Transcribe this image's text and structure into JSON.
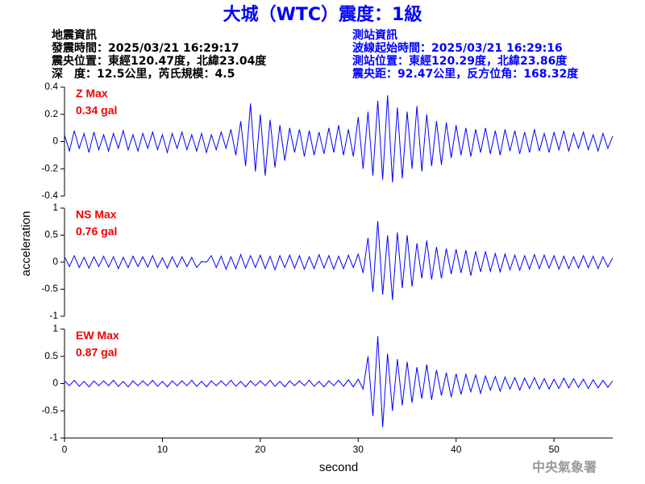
{
  "header": {
    "title": "大城（WTC）震度：1級",
    "left": [
      "地震資訊",
      "發震時間：2025/03/21 16:29:17",
      "震央位置：東經120.47度，北緯23.04度",
      "深　度：12.5公里，芮氏規模：4.5"
    ],
    "right": [
      "測站資訊",
      "波線起始時間：2025/03/21 16:29:16",
      "測站位置：東經120.29度，北緯23.86度",
      "震央距：92.47公里，反方位角：168.32度"
    ],
    "ylabel": "acceleration",
    "footer": "中央氣象署"
  },
  "chart_data": [
    {
      "type": "line",
      "annotation": [
        "Z Max",
        "0.34 gal"
      ],
      "color": "#0000ff",
      "xlim": [
        0,
        56
      ],
      "ylim": [
        -0.4,
        0.4
      ],
      "yticks": [
        0.4,
        0.2,
        0,
        -0.2,
        -0.4
      ],
      "x": [
        0,
        0.5,
        1,
        1.5,
        2,
        2.5,
        3,
        3.5,
        4,
        4.5,
        5,
        5.5,
        6,
        6.5,
        7,
        7.5,
        8,
        8.5,
        9,
        9.5,
        10,
        10.5,
        11,
        11.5,
        12,
        12.5,
        13,
        13.5,
        14,
        14.5,
        15,
        15.5,
        16,
        16.5,
        17,
        17.5,
        18,
        18.5,
        19,
        19.5,
        20,
        20.5,
        21,
        21.5,
        22,
        22.5,
        23,
        23.5,
        24,
        24.5,
        25,
        25.5,
        26,
        26.5,
        27,
        27.5,
        28,
        28.5,
        29,
        29.5,
        30,
        30.5,
        31,
        31.5,
        32,
        32.5,
        33,
        33.5,
        34,
        34.5,
        35,
        35.5,
        36,
        36.5,
        37,
        37.5,
        38,
        38.5,
        39,
        39.5,
        40,
        40.5,
        41,
        41.5,
        42,
        42.5,
        43,
        43.5,
        44,
        44.5,
        45,
        45.5,
        46,
        46.5,
        47,
        47.5,
        48,
        48.5,
        49,
        49.5,
        50,
        50.5,
        51,
        51.5,
        52,
        52.5,
        53,
        53.5,
        54,
        54.5,
        55,
        55.5,
        56
      ],
      "values": [
        0.05,
        -0.07,
        0.08,
        -0.05,
        0.06,
        -0.08,
        0.07,
        -0.06,
        0.05,
        -0.07,
        0.06,
        -0.05,
        0.08,
        -0.06,
        0.05,
        -0.07,
        0.06,
        -0.05,
        0.07,
        -0.06,
        0.05,
        -0.08,
        0.06,
        -0.05,
        0.07,
        -0.06,
        0.05,
        -0.07,
        0.06,
        -0.08,
        0.05,
        -0.06,
        0.07,
        -0.05,
        0.09,
        -0.1,
        0.15,
        -0.18,
        0.28,
        -0.22,
        0.2,
        -0.25,
        0.16,
        -0.19,
        0.12,
        -0.14,
        0.1,
        -0.08,
        0.09,
        -0.11,
        0.08,
        -0.1,
        0.07,
        -0.09,
        0.1,
        -0.08,
        0.12,
        -0.1,
        0.09,
        -0.11,
        0.18,
        -0.2,
        0.22,
        -0.25,
        0.3,
        -0.28,
        0.34,
        -0.3,
        0.25,
        -0.27,
        0.22,
        -0.2,
        0.26,
        -0.22,
        0.2,
        -0.18,
        0.15,
        -0.17,
        0.14,
        -0.12,
        0.12,
        -0.1,
        0.1,
        -0.11,
        0.09,
        -0.08,
        0.1,
        -0.09,
        0.08,
        -0.1,
        0.09,
        -0.07,
        0.08,
        -0.09,
        0.07,
        -0.08,
        0.09,
        -0.07,
        0.06,
        -0.08,
        0.07,
        -0.06,
        0.08,
        -0.07,
        0.06,
        -0.05,
        0.07,
        -0.06,
        0.05,
        -0.07,
        0.06,
        -0.05,
        0.04
      ]
    },
    {
      "type": "line",
      "annotation": [
        "NS Max",
        "0.76 gal"
      ],
      "color": "#0000ff",
      "xlim": [
        0,
        56
      ],
      "ylim": [
        -1,
        1
      ],
      "yticks": [
        1,
        0.5,
        0,
        -0.5,
        -1
      ],
      "x": [
        0,
        0.5,
        1,
        1.5,
        2,
        2.5,
        3,
        3.5,
        4,
        4.5,
        5,
        5.5,
        6,
        6.5,
        7,
        7.5,
        8,
        8.5,
        9,
        9.5,
        10,
        10.5,
        11,
        11.5,
        12,
        12.5,
        13,
        13.5,
        14,
        14.5,
        15,
        15.5,
        16,
        16.5,
        17,
        17.5,
        18,
        18.5,
        19,
        19.5,
        20,
        20.5,
        21,
        21.5,
        22,
        22.5,
        23,
        23.5,
        24,
        24.5,
        25,
        25.5,
        26,
        26.5,
        27,
        27.5,
        28,
        28.5,
        29,
        29.5,
        30,
        30.5,
        31,
        31.5,
        32,
        32.5,
        33,
        33.5,
        34,
        34.5,
        35,
        35.5,
        36,
        36.5,
        37,
        37.5,
        38,
        38.5,
        39,
        39.5,
        40,
        40.5,
        41,
        41.5,
        42,
        42.5,
        43,
        43.5,
        44,
        44.5,
        45,
        45.5,
        46,
        46.5,
        47,
        47.5,
        48,
        48.5,
        49,
        49.5,
        50,
        50.5,
        51,
        51.5,
        52,
        52.5,
        53,
        53.5,
        54,
        54.5,
        55,
        55.5,
        56
      ],
      "values": [
        0.1,
        -0.08,
        0.12,
        -0.1,
        0.09,
        -0.11,
        0.1,
        -0.08,
        0.11,
        -0.09,
        0.1,
        -0.12,
        0.09,
        -0.1,
        0.11,
        -0.08,
        0.1,
        -0.09,
        0.12,
        -0.1,
        0.08,
        -0.11,
        0.1,
        -0.09,
        0.1,
        -0.08,
        0.09,
        -0.1,
        0.01,
        0,
        0.12,
        -0.1,
        0.11,
        -0.13,
        0.1,
        -0.12,
        0.14,
        -0.11,
        0.12,
        -0.1,
        0.13,
        -0.12,
        0.11,
        -0.14,
        0.12,
        -0.1,
        0.13,
        -0.11,
        0.12,
        -0.13,
        0.1,
        -0.12,
        0.14,
        -0.11,
        0.12,
        -0.13,
        0.11,
        -0.12,
        0.13,
        -0.1,
        0.15,
        -0.2,
        0.45,
        -0.55,
        0.76,
        -0.6,
        0.5,
        -0.7,
        0.55,
        -0.48,
        0.5,
        -0.45,
        0.35,
        -0.3,
        0.4,
        -0.32,
        0.28,
        -0.3,
        0.25,
        -0.22,
        0.24,
        -0.2,
        0.22,
        -0.25,
        0.2,
        -0.18,
        0.2,
        -0.17,
        0.16,
        -0.18,
        0.15,
        -0.14,
        0.13,
        -0.15,
        0.12,
        -0.13,
        0.14,
        -0.12,
        0.13,
        -0.11,
        0.12,
        -0.13,
        0.11,
        -0.12,
        0.1,
        -0.11,
        0.12,
        -0.1,
        0.11,
        -0.12,
        0.1,
        -0.09,
        0.08
      ]
    },
    {
      "type": "line",
      "annotation": [
        "EW Max",
        "0.87 gal"
      ],
      "color": "#0000ff",
      "xlim": [
        0,
        56
      ],
      "ylim": [
        -1,
        1
      ],
      "yticks": [
        1,
        0.5,
        0,
        -0.5,
        -1
      ],
      "xticks": [
        0,
        10,
        20,
        30,
        40,
        50
      ],
      "xlabel": "second",
      "x": [
        0,
        0.5,
        1,
        1.5,
        2,
        2.5,
        3,
        3.5,
        4,
        4.5,
        5,
        5.5,
        6,
        6.5,
        7,
        7.5,
        8,
        8.5,
        9,
        9.5,
        10,
        10.5,
        11,
        11.5,
        12,
        12.5,
        13,
        13.5,
        14,
        14.5,
        15,
        15.5,
        16,
        16.5,
        17,
        17.5,
        18,
        18.5,
        19,
        19.5,
        20,
        20.5,
        21,
        21.5,
        22,
        22.5,
        23,
        23.5,
        24,
        24.5,
        25,
        25.5,
        26,
        26.5,
        27,
        27.5,
        28,
        28.5,
        29,
        29.5,
        30,
        30.5,
        31,
        31.5,
        32,
        32.5,
        33,
        33.5,
        34,
        34.5,
        35,
        35.5,
        36,
        36.5,
        37,
        37.5,
        38,
        38.5,
        39,
        39.5,
        40,
        40.5,
        41,
        41.5,
        42,
        42.5,
        43,
        43.5,
        44,
        44.5,
        45,
        45.5,
        46,
        46.5,
        47,
        47.5,
        48,
        48.5,
        49,
        49.5,
        50,
        50.5,
        51,
        51.5,
        52,
        52.5,
        53,
        53.5,
        54,
        54.5,
        55,
        55.5,
        56
      ],
      "values": [
        0.05,
        -0.04,
        0.06,
        -0.05,
        0.04,
        -0.06,
        0.05,
        -0.04,
        0.05,
        -0.04,
        0.06,
        -0.05,
        0.04,
        -0.06,
        0.05,
        -0.04,
        0.05,
        -0.04,
        0.06,
        -0.05,
        0.04,
        -0.06,
        0.05,
        -0.04,
        0.05,
        -0.04,
        0.06,
        -0.05,
        0.04,
        -0.06,
        0.05,
        -0.04,
        0.05,
        -0.04,
        0.06,
        -0.05,
        0.04,
        -0.06,
        0.05,
        -0.04,
        0.05,
        -0.04,
        0.06,
        -0.05,
        0.04,
        -0.06,
        0.05,
        -0.04,
        0.05,
        -0.04,
        0.06,
        -0.05,
        0.04,
        -0.06,
        0.05,
        -0.04,
        0.06,
        -0.05,
        0.07,
        -0.06,
        0.08,
        -0.1,
        0.5,
        -0.6,
        0.87,
        -0.8,
        0.55,
        -0.5,
        0.45,
        -0.4,
        0.4,
        -0.35,
        0.3,
        -0.28,
        0.35,
        -0.3,
        0.25,
        -0.22,
        0.2,
        -0.25,
        0.18,
        -0.2,
        0.17,
        -0.15,
        0.16,
        -0.18,
        0.14,
        -0.12,
        0.13,
        -0.14,
        0.12,
        -0.1,
        0.11,
        -0.12,
        0.1,
        -0.09,
        0.11,
        -0.1,
        0.09,
        -0.1,
        0.08,
        -0.09,
        0.1,
        -0.08,
        0.09,
        -0.07,
        0.08,
        -0.09,
        0.07,
        -0.08,
        0.06,
        -0.07,
        0.05
      ]
    }
  ]
}
